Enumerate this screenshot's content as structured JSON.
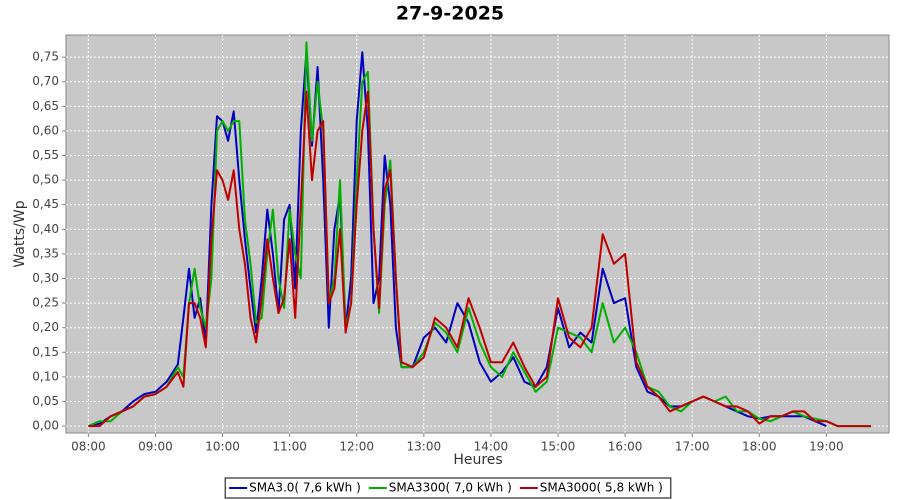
{
  "chart_data": {
    "type": "line",
    "title": "27-9-2025",
    "x_label": "Heures",
    "y_label": "Watts/Wp",
    "x": [
      "08:00",
      "08:10",
      "08:20",
      "08:30",
      "08:40",
      "08:50",
      "09:00",
      "09:10",
      "09:20",
      "09:25",
      "09:30",
      "09:35",
      "09:40",
      "09:45",
      "09:50",
      "09:55",
      "10:00",
      "10:05",
      "10:10",
      "10:15",
      "10:20",
      "10:25",
      "10:30",
      "10:35",
      "10:40",
      "10:45",
      "10:50",
      "10:55",
      "11:00",
      "11:05",
      "11:10",
      "11:15",
      "11:20",
      "11:25",
      "11:30",
      "11:35",
      "11:40",
      "11:45",
      "11:50",
      "11:55",
      "12:00",
      "12:05",
      "12:10",
      "12:15",
      "12:20",
      "12:25",
      "12:30",
      "12:35",
      "12:40",
      "12:50",
      "13:00",
      "13:10",
      "13:20",
      "13:30",
      "13:40",
      "13:50",
      "14:00",
      "14:10",
      "14:20",
      "14:30",
      "14:40",
      "14:50",
      "15:00",
      "15:10",
      "15:20",
      "15:30",
      "15:40",
      "15:50",
      "16:00",
      "16:10",
      "16:20",
      "16:30",
      "16:40",
      "16:50",
      "17:00",
      "17:10",
      "17:20",
      "17:30",
      "17:40",
      "17:50",
      "18:00",
      "18:10",
      "18:20",
      "18:30",
      "18:40",
      "18:50",
      "19:00",
      "19:10",
      "19:20",
      "19:30",
      "19:40"
    ],
    "series": [
      {
        "name": "SMA3.0( 7,6 kWh )",
        "color": "#0000c0",
        "values": [
          0,
          0.005,
          0.02,
          0.03,
          0.05,
          0.065,
          0.07,
          0.09,
          0.125,
          0.22,
          0.32,
          0.22,
          0.26,
          0.17,
          0.45,
          0.63,
          0.62,
          0.58,
          0.64,
          0.5,
          0.38,
          0.28,
          0.19,
          0.3,
          0.44,
          0.35,
          0.23,
          0.42,
          0.45,
          0.28,
          0.6,
          0.76,
          0.57,
          0.73,
          0.5,
          0.2,
          0.4,
          0.47,
          0.2,
          0.3,
          0.62,
          0.76,
          0.6,
          0.25,
          0.3,
          0.55,
          0.45,
          0.2,
          0.12,
          0.12,
          0.18,
          0.2,
          0.17,
          0.25,
          0.21,
          0.13,
          0.09,
          0.11,
          0.14,
          0.09,
          0.08,
          0.12,
          0.24,
          0.16,
          0.19,
          0.17,
          0.32,
          0.25,
          0.26,
          0.12,
          0.07,
          0.06,
          0.04,
          0.04,
          0.05,
          0.06,
          0.05,
          0.04,
          0.03,
          0.02,
          0.015,
          0.02,
          0.02,
          0.02,
          0.02,
          0.01,
          0,
          null,
          null,
          null,
          null
        ]
      },
      {
        "name": "SMA3300( 7,0 kWh )",
        "color": "#00b000",
        "values": [
          0,
          0.01,
          0.01,
          0.03,
          0.04,
          0.06,
          0.065,
          0.08,
          0.12,
          0.1,
          0.25,
          0.32,
          0.24,
          0.2,
          0.3,
          0.6,
          0.62,
          0.6,
          0.62,
          0.62,
          0.42,
          0.33,
          0.21,
          0.22,
          0.35,
          0.44,
          0.3,
          0.24,
          0.44,
          0.35,
          0.3,
          0.78,
          0.58,
          0.7,
          0.6,
          0.25,
          0.3,
          0.5,
          0.2,
          0.25,
          0.5,
          0.7,
          0.72,
          0.4,
          0.23,
          0.45,
          0.54,
          0.3,
          0.12,
          0.12,
          0.15,
          0.21,
          0.19,
          0.15,
          0.24,
          0.17,
          0.12,
          0.1,
          0.15,
          0.11,
          0.07,
          0.09,
          0.2,
          0.19,
          0.18,
          0.15,
          0.25,
          0.17,
          0.2,
          0.15,
          0.08,
          0.07,
          0.04,
          0.03,
          0.05,
          0.06,
          0.05,
          0.06,
          0.03,
          0.03,
          0.015,
          0.01,
          0.02,
          0.03,
          0.02,
          0.015,
          0.01,
          0,
          0,
          0,
          0
        ]
      },
      {
        "name": "SMA3000( 5,8 kWh )",
        "color": "#c00000",
        "values": [
          0,
          0,
          0.02,
          0.03,
          0.04,
          0.06,
          0.065,
          0.08,
          0.11,
          0.08,
          0.25,
          0.25,
          0.22,
          0.16,
          0.38,
          0.52,
          0.5,
          0.46,
          0.52,
          0.4,
          0.33,
          0.22,
          0.17,
          0.26,
          0.38,
          0.3,
          0.23,
          0.26,
          0.38,
          0.22,
          0.45,
          0.68,
          0.5,
          0.6,
          0.62,
          0.25,
          0.28,
          0.4,
          0.19,
          0.25,
          0.45,
          0.6,
          0.68,
          0.4,
          0.24,
          0.48,
          0.52,
          0.3,
          0.13,
          0.12,
          0.14,
          0.22,
          0.2,
          0.16,
          0.26,
          0.2,
          0.13,
          0.13,
          0.17,
          0.12,
          0.08,
          0.1,
          0.26,
          0.18,
          0.16,
          0.2,
          0.39,
          0.33,
          0.35,
          0.13,
          0.08,
          0.06,
          0.03,
          0.04,
          0.05,
          0.06,
          0.05,
          0.04,
          0.04,
          0.03,
          0.005,
          0.02,
          0.02,
          0.03,
          0.03,
          0.01,
          0.01,
          0,
          0,
          0,
          0
        ]
      }
    ],
    "xlim": [
      "07:40",
      "19:56"
    ],
    "xticks": [
      "08:00",
      "09:00",
      "10:00",
      "11:00",
      "12:00",
      "13:00",
      "14:00",
      "15:00",
      "16:00",
      "17:00",
      "18:00",
      "19:00"
    ],
    "ylim": [
      -0.014,
      0.795
    ],
    "yticks": [
      {
        "value": 0,
        "label": "0,00"
      },
      {
        "value": 0.05,
        "label": "0,05"
      },
      {
        "value": 0.1,
        "label": "0,10"
      },
      {
        "value": 0.15,
        "label": "0,15"
      },
      {
        "value": 0.2,
        "label": "0,20"
      },
      {
        "value": 0.25,
        "label": "0,25"
      },
      {
        "value": 0.3,
        "label": "0,30"
      },
      {
        "value": 0.35,
        "label": "0,35"
      },
      {
        "value": 0.4,
        "label": "0,40"
      },
      {
        "value": 0.45,
        "label": "0,45"
      },
      {
        "value": 0.5,
        "label": "0,50"
      },
      {
        "value": 0.55,
        "label": "0,55"
      },
      {
        "value": 0.6,
        "label": "0,60"
      },
      {
        "value": 0.65,
        "label": "0,65"
      },
      {
        "value": 0.7,
        "label": "0,70"
      },
      {
        "value": 0.75,
        "label": "0,75"
      }
    ],
    "grid": true,
    "legend": "bottom"
  }
}
